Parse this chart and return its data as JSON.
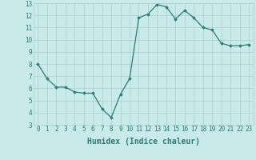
{
  "x": [
    0,
    1,
    2,
    3,
    4,
    5,
    6,
    7,
    8,
    9,
    10,
    11,
    12,
    13,
    14,
    15,
    16,
    17,
    18,
    19,
    20,
    21,
    22,
    23
  ],
  "y": [
    8.0,
    6.8,
    6.1,
    6.1,
    5.7,
    5.6,
    5.6,
    4.3,
    3.6,
    5.5,
    6.8,
    11.8,
    12.1,
    12.9,
    12.7,
    11.7,
    12.4,
    11.8,
    11.0,
    10.8,
    9.7,
    9.5,
    9.5,
    9.6
  ],
  "line_color": "#2e7d6e",
  "marker": "D",
  "marker_size": 1.8,
  "bg_color": "#c8eae8",
  "grid_color": "#aacfcc",
  "xlabel": "Humidex (Indice chaleur)",
  "xlabel_fontsize": 7,
  "tick_color": "#2e7d6e",
  "ylim": [
    3,
    13
  ],
  "xlim": [
    -0.5,
    23.5
  ],
  "yticks": [
    3,
    4,
    5,
    6,
    7,
    8,
    9,
    10,
    11,
    12,
    13
  ],
  "xticks": [
    0,
    1,
    2,
    3,
    4,
    5,
    6,
    7,
    8,
    9,
    10,
    11,
    12,
    13,
    14,
    15,
    16,
    17,
    18,
    19,
    20,
    21,
    22,
    23
  ],
  "tick_fontsize": 5.5,
  "linewidth": 0.9
}
